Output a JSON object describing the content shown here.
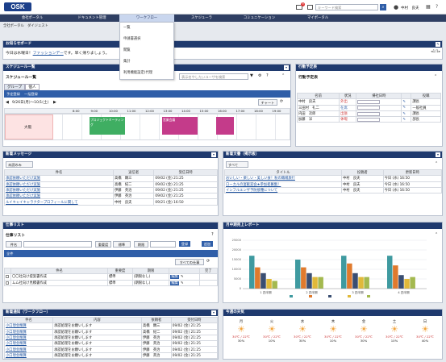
{
  "header": {
    "logo": "OSK",
    "search_placeholder": "キーワード検索",
    "user": "中村　良夫",
    "mail_badge": "9"
  },
  "nav": [
    "会社ポータル",
    "ドキュメント管理",
    "ワークフロー",
    "スケジューラ",
    "コミュニケーション",
    "マイポータル"
  ],
  "dropdown": [
    "一覧",
    "申請書選択",
    "閲覧",
    "集計",
    "利用機能設定(代理"
  ],
  "breadcrumb": "全社ポータル　ダイジェスト",
  "notice": {
    "title": "お知らせボード",
    "text_pre": "今日は水曜日！",
    "link": "ファッションデー",
    "text_post": "です。早く帰りましょう。"
  },
  "schedule": {
    "title": "スケジュール一覧",
    "sub": "スケジュール一覧",
    "filter_placeholder": "表示名やしたいユーザを検索",
    "tab_group": "グループ",
    "tab_person": "個人",
    "sel1": "予定登録",
    "sel2": "一括登録",
    "range": "9/26日(月)〜10/1(土)",
    "view": "チャート",
    "times": [
      "8:00",
      "9:00",
      "10:00",
      "11:00",
      "12:00",
      "13:00",
      "14:00",
      "15:00",
      "16:00",
      "17:00",
      "18:00",
      "19:00"
    ],
    "day": "大阪",
    "event1": "プロジェクトミーティング",
    "event2": "営業会議"
  },
  "staff": {
    "title": "行動予定表",
    "sub": "行動予定表",
    "headers": [
      "名前",
      "状況",
      "帰社日時",
      "",
      "役職"
    ],
    "rows": [
      [
        "中村　良夫",
        "外出",
        "",
        "課長"
      ],
      [
        "三田村　礼二",
        "在席",
        "",
        "一般社員"
      ],
      [
        "内田　次郎",
        "出張",
        "",
        "課長"
      ],
      [
        "加藤　洋",
        "休暇",
        "",
        "部長"
      ]
    ]
  },
  "messages": {
    "title": "新着メッセージ",
    "filter": "未読のみ",
    "headers": [
      "件名",
      "送信者",
      "受信日時"
    ],
    "rows": [
      [
        "承認依頼いただけ実施",
        "高橋　顕三",
        "09/02 (金) 21:25"
      ],
      [
        "承認依頼いただけ実施",
        "高橋　紀二",
        "09/02 (金) 21:25"
      ],
      [
        "承認依頼いただけ実施",
        "伊藤　英治",
        "09/02 (金) 21:25"
      ],
      [
        "承認依頼いただけ実施",
        "伊藤　英治",
        "09/02 (金) 21:25"
      ],
      [
        "ルイキャイキャラクタープロフィールに関して",
        "中村　良夫",
        "09/21 (金) 16:50"
      ]
    ]
  },
  "docs": {
    "title": "新着文書（掲示板）",
    "filter": "すべて",
    "headers": [
      "タイトル",
      "投稿者",
      "更新日時"
    ],
    "rows": [
      [
        "おいしい・楽しい・美しい食！秋の職場旅行",
        "中村　良夫",
        "今日 (水) 16:50"
      ],
      [
        "ローカルの宴歓迎会★参加者募集！",
        "中村　良夫",
        "今日 (水) 16:50"
      ],
      [
        "インフルエンザ予防接種について",
        "中村　良夫",
        "今日 (水) 16:50"
      ]
    ]
  },
  "tasks": {
    "title": "仕事リスト",
    "sub": "仕事リスト",
    "btn_name": "件名",
    "btn_level": "重要度",
    "level_val": "標準",
    "btn_due": "期限",
    "btn_reg": "登録",
    "btn_add": "追加",
    "list_label": "全件",
    "filter": "すべての仕事",
    "headers": [
      "件名",
      "重要度",
      "期限",
      "",
      "完了"
    ],
    "rows": [
      [
        "〇〇社向け提案書作成",
        "標準",
        "(期限なし)"
      ],
      [
        "ムム社向け見積書作成",
        "標準",
        "(期限なし)"
      ]
    ],
    "edit": "編集"
  },
  "chart": {
    "title": "月中期売上レポート",
    "sub": "月中期売上レポート"
  },
  "chart_data": {
    "type": "bar",
    "title": "",
    "categories": [
      "1 四半期",
      "2 四半期",
      "3 四半期",
      "4 四半期"
    ],
    "series": [
      {
        "name": "",
        "values": [
          17000,
          15000,
          17000,
          17000
        ],
        "color": "#3f9aa0"
      },
      {
        "name": "",
        "values": [
          11000,
          11000,
          13000,
          12000
        ],
        "color": "#e07a2d"
      },
      {
        "name": "",
        "values": [
          8000,
          8000,
          8000,
          7000
        ],
        "color": "#3a4e72"
      },
      {
        "name": "",
        "values": [
          5000,
          6000,
          6000,
          5000
        ],
        "color": "#e0b93a"
      },
      {
        "name": "",
        "values": [
          4000,
          6000,
          6000,
          6000
        ],
        "color": "#a4b94f"
      }
    ],
    "ylim": [
      0,
      25000
    ]
  },
  "workflow": {
    "title": "新着通知（ワークフロー）",
    "headers": [
      "件名",
      "内容",
      "依頼者",
      "受付日時"
    ],
    "rows": [
      [
        "小口現金精算",
        "承認処理をお願いします",
        "高橋　顕三",
        "09/02 (金) 21:25"
      ],
      [
        "小口現金精算",
        "承認処理をお願いします",
        "高橋　紀二",
        "09/02 (金) 21:25"
      ],
      [
        "小口現金精算",
        "承認処理をお願いします",
        "伊藤　英治",
        "09/02 (金) 21:25"
      ],
      [
        "小口現金精算",
        "承認処理をお願いします",
        "伊藤　英治",
        "09/02 (金) 21:25"
      ],
      [
        "小口現金精算",
        "承認処理をお願いします",
        "伊藤　英治",
        "09/02 (金) 21:25"
      ],
      [
        "小口現金精算",
        "承認処理をお願いします",
        "伊藤　英治",
        "09/02 (金) 21:25"
      ]
    ]
  },
  "weather": {
    "title": "今週の天気",
    "days": [
      {
        "d": "月",
        "t": "30℃ / 22℃",
        "p": "30%"
      },
      {
        "d": "火",
        "t": "30℃ / 22℃",
        "p": "10%"
      },
      {
        "d": "水",
        "t": "30℃ / 22℃",
        "p": "30%"
      },
      {
        "d": "木",
        "t": "30℃ / 22℃",
        "p": "10%"
      },
      {
        "d": "金",
        "t": "30℃ / 22℃",
        "p": "30%"
      },
      {
        "d": "土",
        "t": "30℃ / 22℃",
        "p": "10%"
      },
      {
        "d": "日",
        "t": "30℃ / 22℃",
        "p": "40%"
      }
    ]
  }
}
